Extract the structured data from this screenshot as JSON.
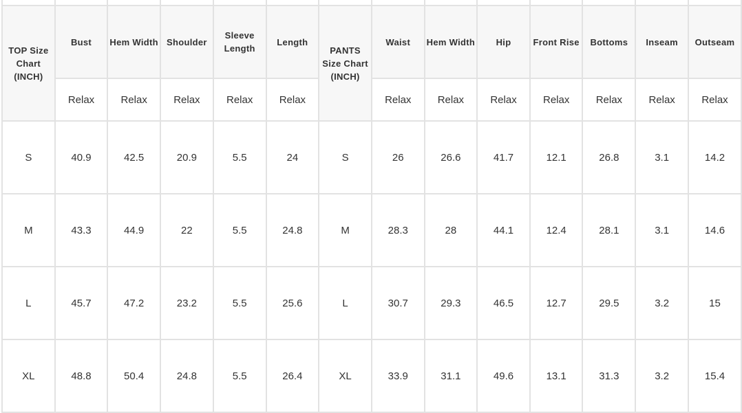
{
  "top_group_label": "TOP Size Chart (INCH)",
  "pants_group_label": "PANTS Size Chart (INCH)",
  "columns": [
    "Bust",
    "Hem Width",
    "Shoulder",
    "Sleeve Length",
    "Length",
    "Waist",
    "Hem Width",
    "Hip",
    "Front Rise",
    "Bottoms",
    "Inseam",
    "Outseam"
  ],
  "fit_label": "Relax",
  "rows": [
    {
      "size": "S",
      "top": [
        "40.9",
        "42.5",
        "20.9",
        "5.5",
        "24"
      ],
      "pants": [
        "26",
        "26.6",
        "41.7",
        "12.1",
        "26.8",
        "3.1",
        "14.2"
      ]
    },
    {
      "size": "M",
      "top": [
        "43.3",
        "44.9",
        "22",
        "5.5",
        "24.8"
      ],
      "pants": [
        "28.3",
        "28",
        "44.1",
        "12.4",
        "28.1",
        "3.1",
        "14.6"
      ]
    },
    {
      "size": "L",
      "top": [
        "45.7",
        "47.2",
        "23.2",
        "5.5",
        "25.6"
      ],
      "pants": [
        "30.7",
        "29.3",
        "46.5",
        "12.7",
        "29.5",
        "3.2",
        "15"
      ]
    },
    {
      "size": "XL",
      "top": [
        "48.8",
        "50.4",
        "24.8",
        "5.5",
        "26.4"
      ],
      "pants": [
        "33.9",
        "31.1",
        "49.6",
        "13.1",
        "31.3",
        "3.2",
        "15.4"
      ]
    }
  ]
}
